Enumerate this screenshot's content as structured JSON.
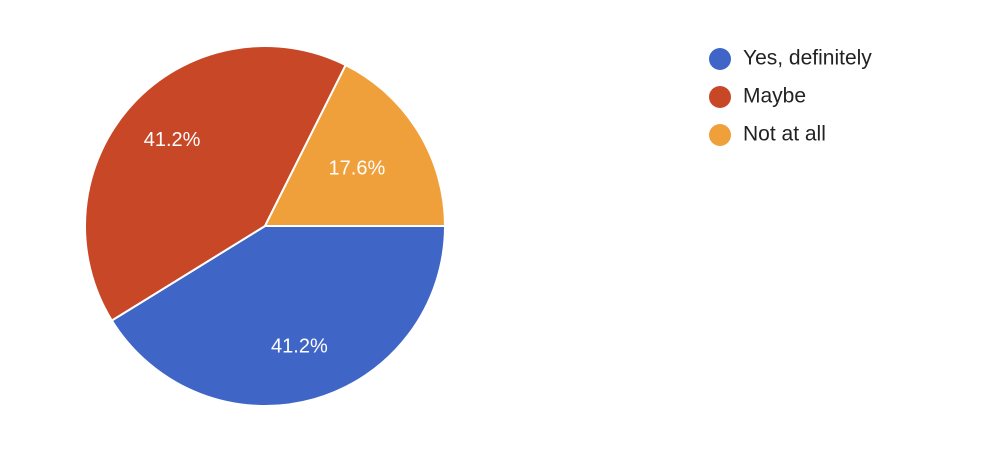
{
  "chart_data": {
    "type": "pie",
    "categories": [
      "Yes, definitely",
      "Maybe",
      "Not at all"
    ],
    "values": [
      41.2,
      41.2,
      17.6
    ],
    "value_labels": [
      "41.2%",
      "41.2%",
      "17.6%"
    ],
    "colors": [
      "#3f65c6",
      "#c84727",
      "#f0a03a"
    ],
    "legend": "right"
  }
}
